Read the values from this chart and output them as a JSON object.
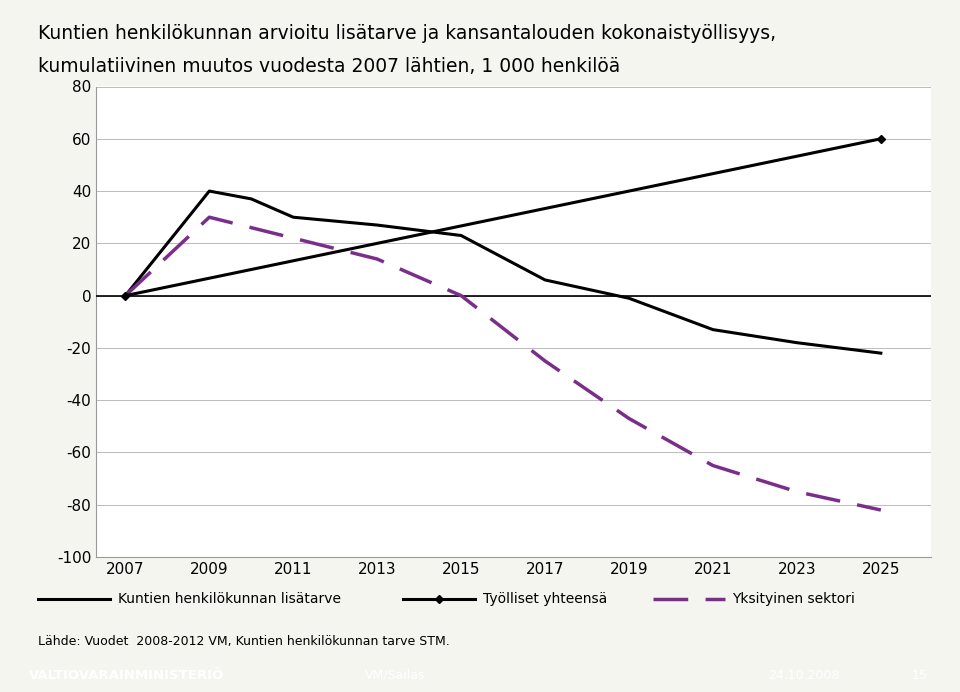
{
  "title_line1": "Kuntien henkilökunnan arvioitu lisätarve ja kansantalouden kokonaistyöllisyys,",
  "title_line2": "kumulatiivinen muutos vuodesta 2007 lähtien, 1 000 henkilöä",
  "kuntien_years": [
    2007,
    2009,
    2010,
    2011,
    2013,
    2015,
    2017,
    2019,
    2021,
    2023,
    2025
  ],
  "kuntien_vals": [
    0,
    40,
    37,
    30,
    27,
    23,
    6,
    -1,
    -13,
    -18,
    -22
  ],
  "tyolliset_years": [
    2007,
    2025
  ],
  "tyolliset_vals": [
    0,
    60
  ],
  "yksityinen_years": [
    2007,
    2009,
    2013,
    2015,
    2017,
    2019,
    2021,
    2023,
    2025
  ],
  "yksityinen_vals": [
    0,
    30,
    14,
    0,
    -25,
    -47,
    -65,
    -75,
    -82
  ],
  "ylim": [
    -100,
    80
  ],
  "yticks": [
    -100,
    -80,
    -60,
    -40,
    -20,
    0,
    20,
    40,
    60,
    80
  ],
  "xtick_years": [
    2007,
    2009,
    2011,
    2013,
    2015,
    2017,
    2019,
    2021,
    2023,
    2025
  ],
  "color_black": "#000000",
  "color_purple": "#7B2D8B",
  "legend_1": "Kuntien henkilökunnan lisätarve",
  "legend_2": "Työlliset yhteensä",
  "legend_3": "Yksityinen sektori",
  "footer_left": "Lähde: Vuodet  2008-2012 VM, Kuntien henkilökunnan tarve STM.",
  "footer_org": "VALTIOVARAINMINISTERIÖ",
  "footer_source": "VM/Sailas",
  "footer_date": "24.10.2008",
  "footer_page": "15",
  "bg_color": "#f0f0f0",
  "plot_bg": "#ffffff"
}
